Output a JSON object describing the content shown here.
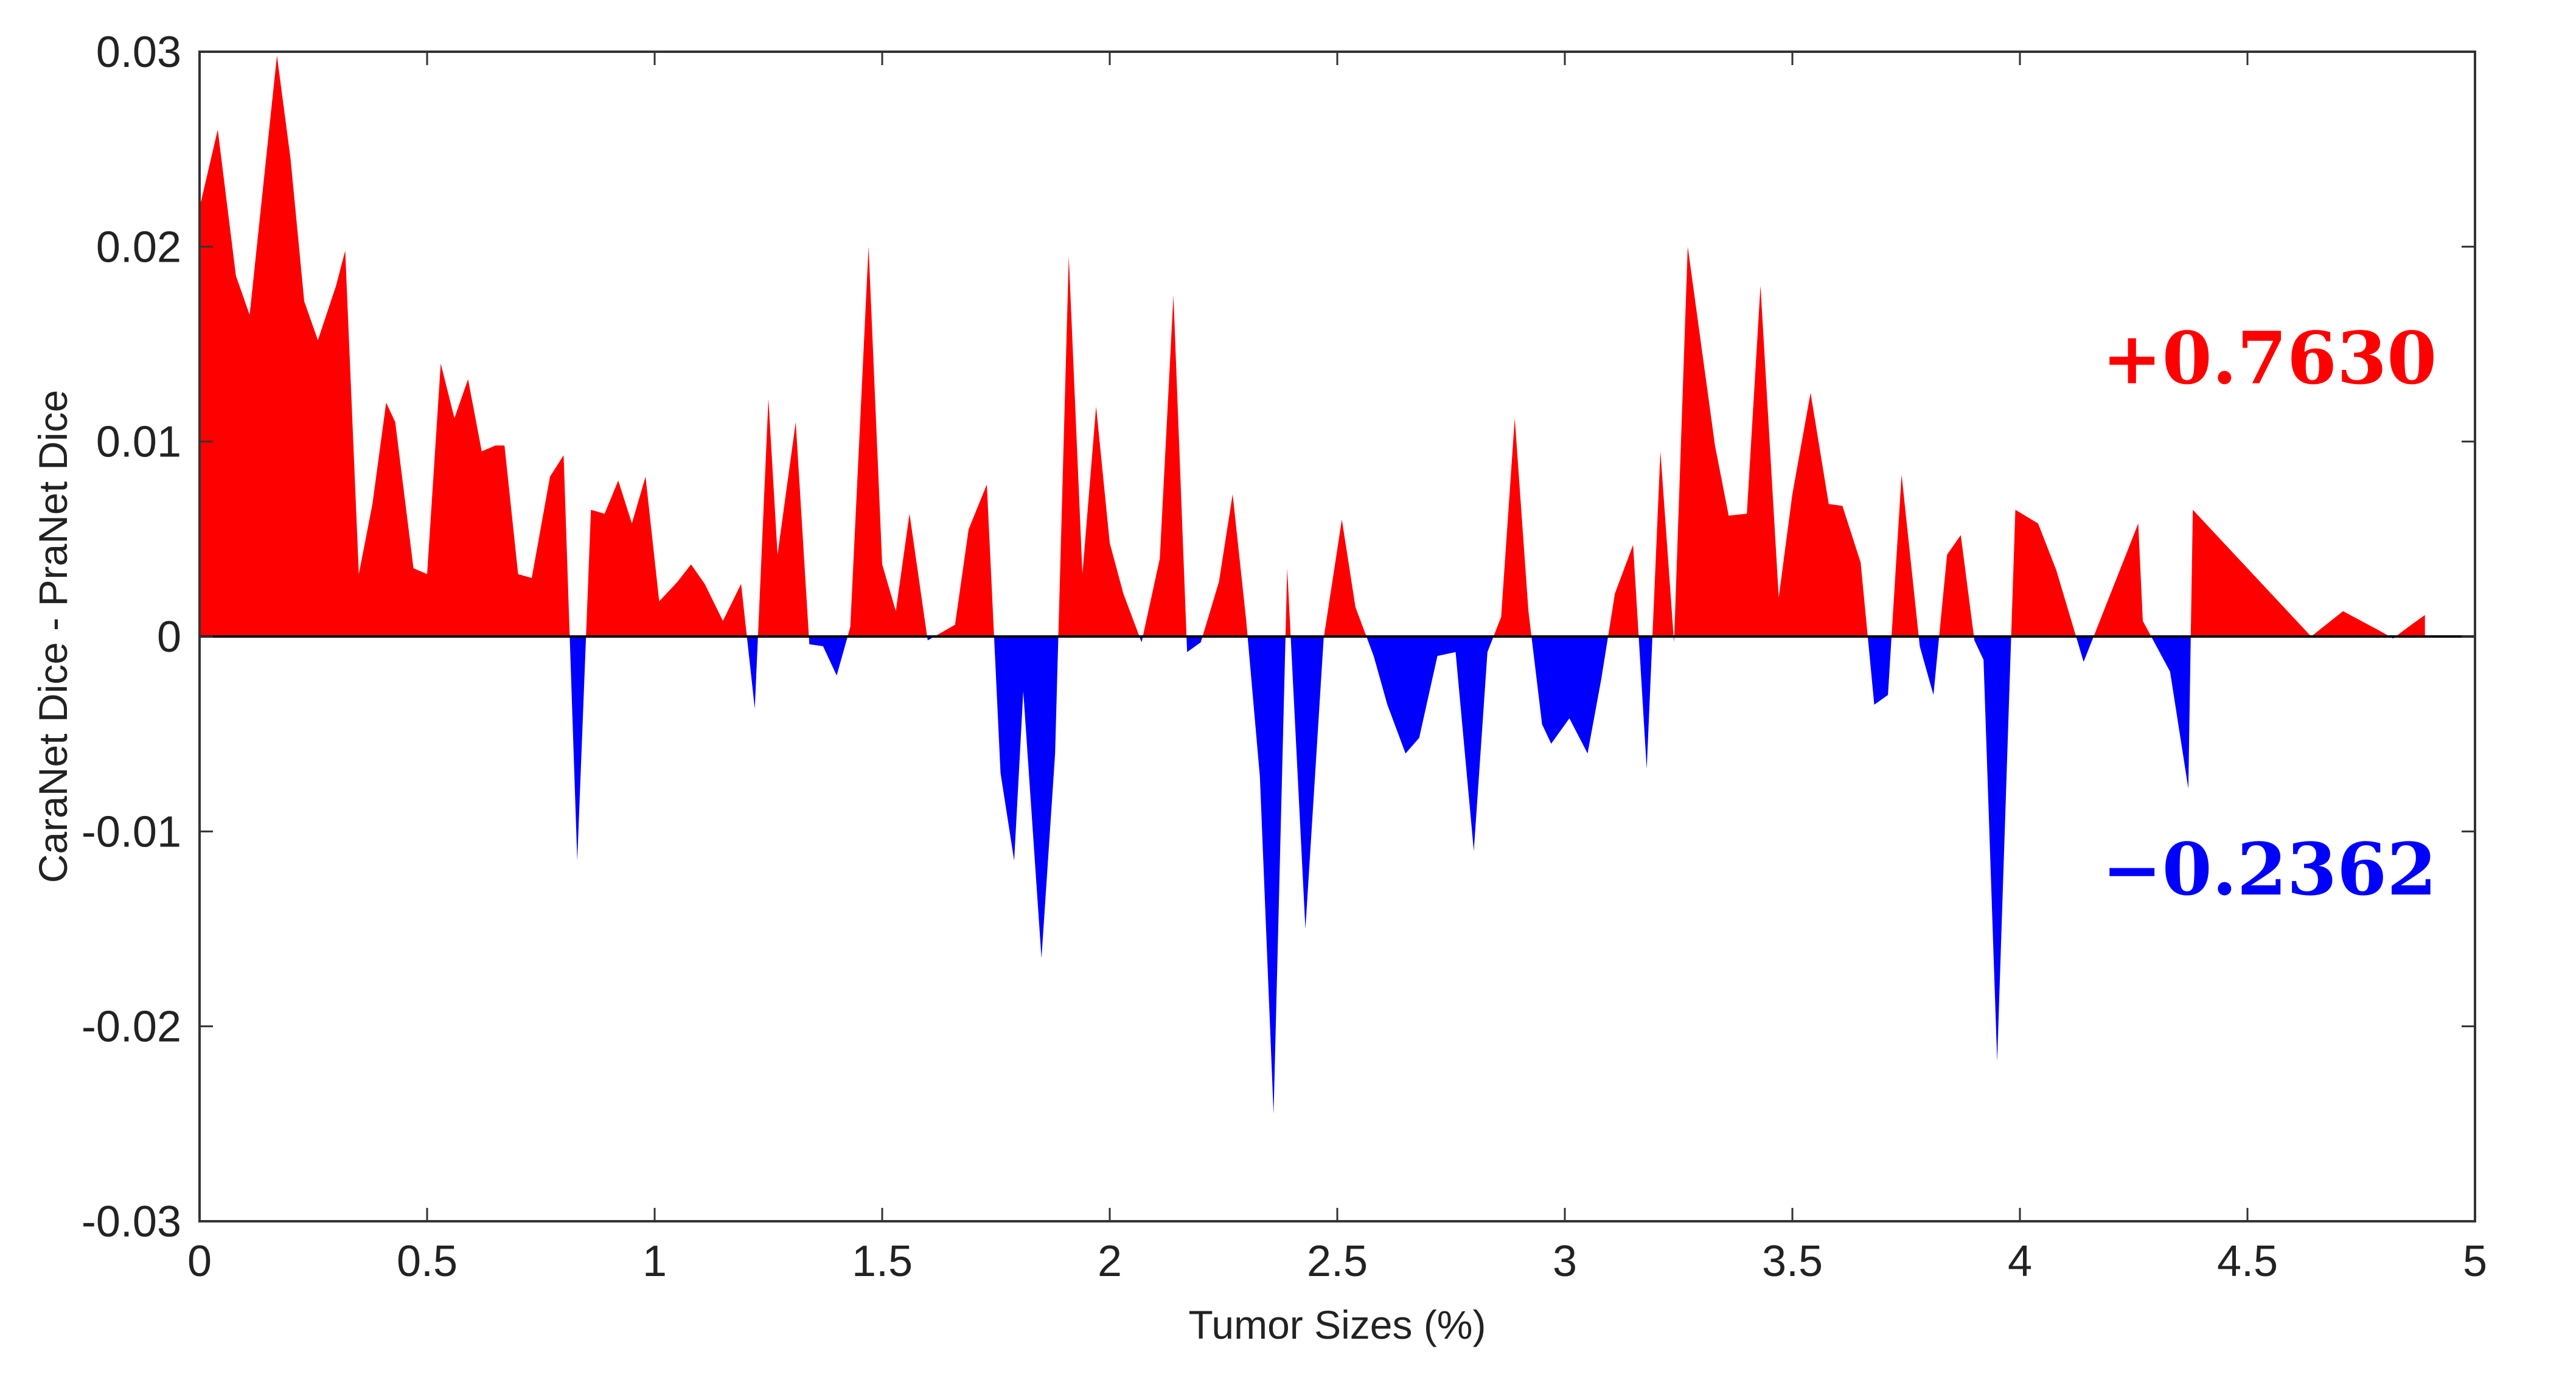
{
  "chart_data": {
    "type": "area",
    "xlabel": "Tumor Sizes (%)",
    "ylabel": "CaraNet Dice - PraNet Dice",
    "xlim": [
      0,
      5
    ],
    "ylim": [
      -0.03,
      0.03
    ],
    "xticks": [
      0,
      0.5,
      1,
      1.5,
      2,
      2.5,
      3,
      3.5,
      4,
      4.5,
      5
    ],
    "xtick_labels": [
      "0",
      "0.5",
      "1",
      "1.5",
      "2",
      "2.5",
      "3",
      "3.5",
      "4",
      "4.5",
      "5"
    ],
    "yticks": [
      0.03,
      0.02,
      0.01,
      0,
      -0.01,
      -0.02,
      -0.03
    ],
    "ytick_labels": [
      "0.03",
      "0.02",
      "0.01",
      "0",
      "-0.01",
      "-0.02",
      "-0.03"
    ],
    "grid": false,
    "positive_color": "#ff0000",
    "negative_color": "#0000ff",
    "annotations": [
      {
        "text": "+0.7630",
        "color": "#ff0000"
      },
      {
        "text": "−0.2362",
        "color": "#0000ff"
      }
    ],
    "x": [
      0.0,
      0.04,
      0.08,
      0.11,
      0.17,
      0.2,
      0.23,
      0.26,
      0.3,
      0.32,
      0.35,
      0.38,
      0.41,
      0.43,
      0.47,
      0.5,
      0.53,
      0.56,
      0.59,
      0.62,
      0.65,
      0.67,
      0.7,
      0.73,
      0.77,
      0.8,
      0.83,
      0.86,
      0.89,
      0.92,
      0.95,
      0.98,
      1.01,
      1.05,
      1.08,
      1.11,
      1.15,
      1.19,
      1.22,
      1.25,
      1.27,
      1.31,
      1.34,
      1.37,
      1.4,
      1.43,
      1.47,
      1.5,
      1.53,
      1.56,
      1.6,
      1.63,
      1.66,
      1.69,
      1.73,
      1.76,
      1.79,
      1.81,
      1.85,
      1.88,
      1.91,
      1.94,
      1.97,
      2.0,
      2.03,
      2.07,
      2.11,
      2.14,
      2.17,
      2.2,
      2.24,
      2.27,
      2.3,
      2.33,
      2.36,
      2.39,
      2.43,
      2.47,
      2.51,
      2.54,
      2.58,
      2.61,
      2.65,
      2.68,
      2.72,
      2.76,
      2.8,
      2.83,
      2.86,
      2.89,
      2.92,
      2.95,
      2.97,
      3.01,
      3.05,
      3.08,
      3.11,
      3.15,
      3.18,
      3.21,
      3.24,
      3.27,
      3.33,
      3.36,
      3.4,
      3.43,
      3.47,
      3.5,
      3.54,
      3.58,
      3.61,
      3.65,
      3.68,
      3.71,
      3.74,
      3.78,
      3.81,
      3.84,
      3.87,
      3.9,
      3.92,
      3.95,
      3.99,
      4.04,
      4.08,
      4.14,
      4.26,
      4.27,
      4.33,
      4.37,
      4.38,
      4.64,
      4.71,
      4.79,
      4.82,
      4.86,
      4.89
    ],
    "y": [
      0.022,
      0.026,
      0.0185,
      0.0165,
      0.0298,
      0.0245,
      0.0172,
      0.0152,
      0.018,
      0.0198,
      0.0032,
      0.0068,
      0.012,
      0.011,
      0.0035,
      0.0032,
      0.014,
      0.0112,
      0.0132,
      0.0095,
      0.0098,
      0.0098,
      0.0032,
      0.003,
      0.0082,
      0.0093,
      -0.0115,
      0.0065,
      0.0063,
      0.008,
      0.0058,
      0.0082,
      0.0018,
      0.0028,
      0.0037,
      0.0027,
      0.0008,
      0.0027,
      -0.0037,
      0.0122,
      0.0042,
      0.011,
      -0.0004,
      -0.0005,
      -0.002,
      0.0005,
      0.02,
      0.0037,
      0.0013,
      0.0063,
      -0.0002,
      0.0002,
      0.0006,
      0.0055,
      0.0078,
      -0.007,
      -0.0115,
      -0.0028,
      -0.0165,
      -0.006,
      0.0195,
      0.0032,
      0.0118,
      0.0048,
      0.0022,
      -0.0003,
      0.004,
      0.0175,
      -0.0008,
      -0.0003,
      0.0028,
      0.0073,
      0.0008,
      -0.0072,
      -0.0245,
      0.0035,
      -0.015,
      -0.0001,
      0.006,
      0.0015,
      -0.001,
      -0.0035,
      -0.006,
      -0.0052,
      -0.001,
      -0.0008,
      -0.011,
      -0.0008,
      0.001,
      0.0112,
      0.0013,
      -0.0045,
      -0.0055,
      -0.0042,
      -0.006,
      -0.0022,
      0.0022,
      0.0047,
      -0.0068,
      0.0095,
      -0.0003,
      0.02,
      0.0098,
      0.0062,
      0.0063,
      0.018,
      0.002,
      0.0073,
      0.0125,
      0.0068,
      0.0067,
      0.0038,
      -0.0035,
      -0.003,
      0.0083,
      -0.0005,
      -0.003,
      0.0042,
      0.0052,
      -0.0002,
      -0.0012,
      -0.0218,
      0.0065,
      0.0058,
      0.0034,
      -0.0013,
      0.0058,
      0.0008,
      -0.0018,
      -0.0078,
      0.0065,
      0.0,
      0.0013,
      0.0003,
      -0.0001,
      0.0006,
      0.0011
    ]
  }
}
